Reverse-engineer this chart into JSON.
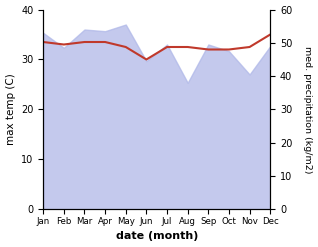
{
  "months": [
    "Jan",
    "Feb",
    "Mar",
    "Apr",
    "May",
    "Jun",
    "Jul",
    "Aug",
    "Sep",
    "Oct",
    "Nov",
    "Dec"
  ],
  "month_indices": [
    0,
    1,
    2,
    3,
    4,
    5,
    6,
    7,
    8,
    9,
    10,
    11
  ],
  "temp_max": [
    33.5,
    33.0,
    33.5,
    33.5,
    32.5,
    30.0,
    32.5,
    32.5,
    32.0,
    32.0,
    32.5,
    35.0
  ],
  "precipitation": [
    53.0,
    48.5,
    54.0,
    53.5,
    55.5,
    44.5,
    49.5,
    38.0,
    49.5,
    47.5,
    40.5,
    49.0
  ],
  "temp_ylim": [
    0,
    40
  ],
  "precip_ylim": [
    0,
    60
  ],
  "fill_color": "#b0b8e8",
  "line_color": "#c0392b",
  "line_width": 1.5,
  "xlabel": "date (month)",
  "ylabel_left": "max temp (C)",
  "ylabel_right": "med. precipitation (kg/m2)",
  "background_color": "#ffffff"
}
